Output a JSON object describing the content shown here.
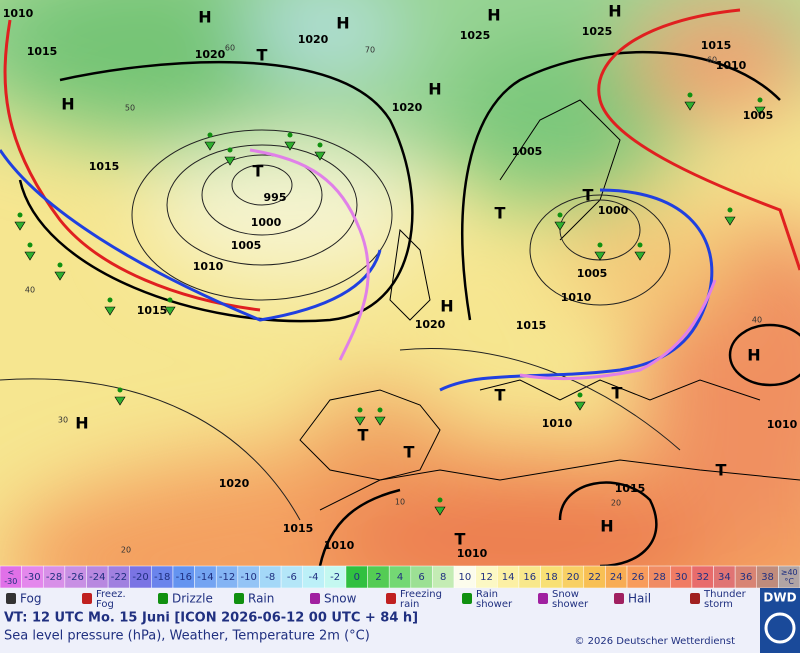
{
  "map": {
    "pressure_labels": [
      "1010",
      "1015",
      "1020",
      "1020",
      "1025",
      "1025",
      "1015",
      "1010",
      "1020",
      "1015",
      "1005",
      "1005",
      "995",
      "1000",
      "1005",
      "1010",
      "1000",
      "1005",
      "1010",
      "1015",
      "1020",
      "1015",
      "1010",
      "1010",
      "1015",
      "1020",
      "1015",
      "1010",
      "1010"
    ],
    "temperature_labels": [
      "40",
      "30",
      "20",
      "20",
      "40",
      "60",
      "50",
      "60",
      "10",
      "70"
    ],
    "highs": [
      "H",
      "H",
      "H",
      "H",
      "H",
      "H",
      "H",
      "H",
      "H",
      "H"
    ],
    "lows": [
      "T",
      "T",
      "T",
      "T",
      "T",
      "T",
      "T",
      "T",
      "T",
      "T"
    ]
  },
  "scale": [
    {
      "lines": [
        "<",
        "-30"
      ],
      "color": "#e070e8"
    },
    {
      "lines": [
        "-30"
      ],
      "color": "#e488ec"
    },
    {
      "lines": [
        "-28"
      ],
      "color": "#d890e8"
    },
    {
      "lines": [
        "-26"
      ],
      "color": "#c890e4"
    },
    {
      "lines": [
        "-24"
      ],
      "color": "#b888e0"
    },
    {
      "lines": [
        "-22"
      ],
      "color": "#a080e0"
    },
    {
      "lines": [
        "-20"
      ],
      "color": "#7a74e4"
    },
    {
      "lines": [
        "-18"
      ],
      "color": "#6a84ec"
    },
    {
      "lines": [
        "-16"
      ],
      "color": "#6494f0"
    },
    {
      "lines": [
        "-14"
      ],
      "color": "#74a4f2"
    },
    {
      "lines": [
        "-12"
      ],
      "color": "#84b4f4"
    },
    {
      "lines": [
        "-10"
      ],
      "color": "#94c4f6"
    },
    {
      "lines": [
        "-8"
      ],
      "color": "#a4d8f8"
    },
    {
      "lines": [
        "-6"
      ],
      "color": "#b4e6f8"
    },
    {
      "lines": [
        "-4"
      ],
      "color": "#bcf0f8"
    },
    {
      "lines": [
        "-2"
      ],
      "color": "#c4f8f0"
    },
    {
      "lines": [
        "0"
      ],
      "color": "#30c040"
    },
    {
      "lines": [
        "2"
      ],
      "color": "#54cc54"
    },
    {
      "lines": [
        "4"
      ],
      "color": "#74d874"
    },
    {
      "lines": [
        "6"
      ],
      "color": "#9ce094"
    },
    {
      "lines": [
        "8"
      ],
      "color": "#c4ecb4"
    },
    {
      "lines": [
        "10"
      ],
      "color": "#fcfcec"
    },
    {
      "lines": [
        "12"
      ],
      "color": "#fcf8c4"
    },
    {
      "lines": [
        "14"
      ],
      "color": "#fcf0a4"
    },
    {
      "lines": [
        "16"
      ],
      "color": "#f8e88c"
    },
    {
      "lines": [
        "18"
      ],
      "color": "#f8e074"
    },
    {
      "lines": [
        "20"
      ],
      "color": "#f8d064"
    },
    {
      "lines": [
        "22"
      ],
      "color": "#f8c054"
    },
    {
      "lines": [
        "24"
      ],
      "color": "#f8ac54"
    },
    {
      "lines": [
        "26"
      ],
      "color": "#f89c5c"
    },
    {
      "lines": [
        "28"
      ],
      "color": "#f08c64"
    },
    {
      "lines": [
        "30"
      ],
      "color": "#f07c64"
    },
    {
      "lines": [
        "32"
      ],
      "color": "#e86c6c"
    },
    {
      "lines": [
        "34"
      ],
      "color": "#e07474"
    },
    {
      "lines": [
        "36"
      ],
      "color": "#d88474"
    },
    {
      "lines": [
        "38"
      ],
      "color": "#c08c7c"
    },
    {
      "lines": [
        "≥40",
        "°C"
      ],
      "color": "#b0a4a4"
    }
  ],
  "legend": [
    {
      "lines": [
        "Fog"
      ]
    },
    {
      "lines": [
        "Freez.",
        "Fog"
      ]
    },
    {
      "lines": [
        "Drizzle"
      ]
    },
    {
      "lines": [
        "Rain"
      ]
    },
    {
      "lines": [
        "Snow"
      ]
    },
    {
      "lines": [
        "Freezing",
        "rain"
      ]
    },
    {
      "lines": [
        "Rain",
        "shower"
      ]
    },
    {
      "lines": [
        "Snow",
        "shower"
      ]
    },
    {
      "lines": [
        "Hail"
      ]
    },
    {
      "lines": [
        "Thunder",
        "storm"
      ]
    }
  ],
  "footer": {
    "valid_time": "VT: 12 UTC Mo.  15 Juni [ICON 2026-06-12  00 UTC + 84 h]",
    "description": "Sea level pressure (hPa), Weather, Temperature 2m (°C)",
    "copyright": "© 2026 Deutscher Wetterdienst",
    "logo": "DWD"
  }
}
